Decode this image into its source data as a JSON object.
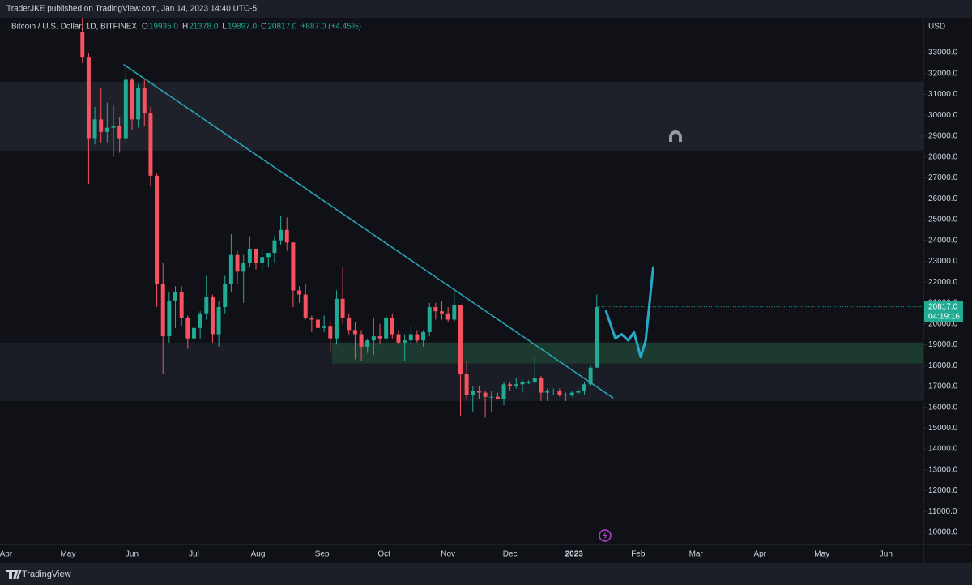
{
  "header": {
    "publisher": "TraderJKE published on TradingView.com, Jan 14, 2023 14:40 UTC-5",
    "footer": "TradingView"
  },
  "chart_data": {
    "type": "candlestick",
    "title": "Bitcoin / U.S. Dollar, 1D, BITFINEX",
    "ohlc_legend": [
      {
        "key": "O",
        "value": "19935.0"
      },
      {
        "key": "H",
        "value": "21378.0"
      },
      {
        "key": "L",
        "value": "19897.0"
      },
      {
        "key": "C",
        "value": "20817.0"
      }
    ],
    "change": "+887.0 (+4.45%)",
    "y_unit": "USD",
    "up_color": "#22ab94",
    "down_color": "#f7525f",
    "open": [
      34000,
      32800,
      28900,
      29800,
      29200,
      29400,
      29500,
      28900,
      31700,
      29800,
      31300,
      30100,
      27100,
      21900,
      19400,
      21100,
      21500,
      20300,
      19300,
      19800,
      20500,
      21300,
      19500,
      20800,
      21900,
      23300,
      22500,
      22900,
      23600,
      22900,
      23200,
      23400,
      24000,
      24500,
      23900,
      21600,
      21400,
      20300,
      20200,
      19800,
      19900,
      19300,
      21200,
      20300,
      19700,
      19500,
      18900,
      19200,
      19400,
      19300,
      20300,
      19500,
      19100,
      19200,
      19500,
      19200,
      19600,
      20800,
      20600,
      20500,
      20200,
      20900,
      17600,
      16600,
      16800,
      16700,
      16500,
      16500,
      16400,
      17100,
      17000,
      17100,
      17200,
      17200,
      17400,
      16700,
      16800,
      16800,
      16600,
      16600,
      16700,
      16800,
      17100,
      17900
    ],
    "high": [
      34700,
      33000,
      30400,
      31300,
      30600,
      30500,
      29900,
      32400,
      31800,
      31500,
      31700,
      30400,
      27200,
      22900,
      21500,
      21800,
      21800,
      20400,
      20200,
      20600,
      22300,
      21400,
      21100,
      22300,
      24300,
      23500,
      23300,
      24200,
      23600,
      23600,
      23400,
      24200,
      25200,
      25100,
      23900,
      21800,
      21900,
      20400,
      20600,
      20400,
      20100,
      21600,
      22700,
      20500,
      20100,
      19700,
      19300,
      20300,
      20000,
      20500,
      20500,
      19700,
      19500,
      19900,
      19700,
      19700,
      21000,
      21000,
      21100,
      20800,
      21500,
      20900,
      18200,
      17000,
      17000,
      16800,
      16800,
      16700,
      17200,
      17200,
      17400,
      17300,
      17300,
      18400,
      17500,
      16900,
      16900,
      16900,
      16700,
      16800,
      16900,
      17200,
      18000,
      21400
    ],
    "low": [
      32500,
      26700,
      28600,
      28700,
      28700,
      28000,
      28200,
      28700,
      29300,
      29400,
      29500,
      26600,
      20800,
      17600,
      19100,
      19800,
      19900,
      18800,
      18800,
      19300,
      20200,
      19100,
      18900,
      20500,
      21500,
      21900,
      21000,
      22700,
      22600,
      22500,
      22700,
      22900,
      23800,
      23500,
      20800,
      21000,
      20200,
      19600,
      19600,
      19600,
      18600,
      19000,
      20000,
      19500,
      18300,
      18200,
      18600,
      18500,
      19000,
      19100,
      19300,
      19000,
      18200,
      19000,
      19100,
      18900,
      19400,
      20200,
      20200,
      20100,
      20100,
      15600,
      16300,
      15800,
      16400,
      15500,
      15800,
      16400,
      16100,
      16800,
      16900,
      16700,
      17100,
      17100,
      16300,
      16300,
      16600,
      16500,
      16300,
      16500,
      16600,
      16600,
      17000,
      17900
    ],
    "close": [
      32800,
      28900,
      29800,
      29200,
      29400,
      29500,
      28900,
      31700,
      29800,
      31300,
      30100,
      27100,
      21900,
      19400,
      21100,
      21500,
      20300,
      19300,
      19800,
      20500,
      21300,
      19500,
      20800,
      21900,
      23300,
      22500,
      22900,
      23600,
      22900,
      23200,
      23400,
      24000,
      24500,
      23900,
      21600,
      21400,
      20300,
      20200,
      19800,
      19900,
      19300,
      21200,
      20300,
      19700,
      19500,
      18900,
      19200,
      19400,
      19300,
      20300,
      19500,
      19100,
      19200,
      19500,
      19200,
      19600,
      20800,
      20600,
      20500,
      20200,
      20900,
      17600,
      16600,
      16800,
      16700,
      16500,
      16500,
      16400,
      17100,
      17000,
      17100,
      17200,
      17200,
      17400,
      16700,
      16800,
      16800,
      16600,
      16600,
      16700,
      16800,
      17100,
      17900,
      20800
    ],
    "xlim": [
      -13.3,
      135.7
    ],
    "xticks": [
      {
        "value": -12.33,
        "label": "Apr"
      },
      {
        "value": -2.33,
        "label": "May"
      },
      {
        "value": 8,
        "label": "Jun"
      },
      {
        "value": 18,
        "label": "Jul"
      },
      {
        "value": 28.33,
        "label": "Aug"
      },
      {
        "value": 38.67,
        "label": "Sep"
      },
      {
        "value": 48.67,
        "label": "Oct"
      },
      {
        "value": 59,
        "label": "Nov"
      },
      {
        "value": 69,
        "label": "Dec"
      },
      {
        "value": 79.33,
        "label": "2023"
      },
      {
        "value": 89.67,
        "label": "Feb"
      },
      {
        "value": 99,
        "label": "Mar"
      },
      {
        "value": 109.33,
        "label": "Apr"
      },
      {
        "value": 119.33,
        "label": "May"
      },
      {
        "value": 129.67,
        "label": "Jun"
      }
    ],
    "ylim": [
      9420,
      34670
    ],
    "yticks": [
      {
        "value": 10000,
        "label": "10000.0"
      },
      {
        "value": 11000,
        "label": "11000.0"
      },
      {
        "value": 12000,
        "label": "12000.0"
      },
      {
        "value": 13000,
        "label": "13000.0"
      },
      {
        "value": 14000,
        "label": "14000.0"
      },
      {
        "value": 15000,
        "label": "15000.0"
      },
      {
        "value": 16000,
        "label": "16000.0"
      },
      {
        "value": 17000,
        "label": "17000.0"
      },
      {
        "value": 18000,
        "label": "18000.0"
      },
      {
        "value": 19000,
        "label": "19000.0"
      },
      {
        "value": 20000,
        "label": "20000.0"
      },
      {
        "value": 21000,
        "label": "21000.0"
      },
      {
        "value": 22000,
        "label": "22000.0"
      },
      {
        "value": 23000,
        "label": "23000.0"
      },
      {
        "value": 24000,
        "label": "24000.0"
      },
      {
        "value": 25000,
        "label": "25000.0"
      },
      {
        "value": 26000,
        "label": "26000.0"
      },
      {
        "value": 27000,
        "label": "27000.0"
      },
      {
        "value": 28000,
        "label": "28000.0"
      },
      {
        "value": 29000,
        "label": "29000.0"
      },
      {
        "value": 30000,
        "label": "30000.0"
      },
      {
        "value": 31000,
        "label": "31000.0"
      },
      {
        "value": 32000,
        "label": "32000.0"
      },
      {
        "value": 33000,
        "label": "33000.0"
      }
    ],
    "grid": false,
    "zones": [
      {
        "y": [
          28300,
          31600
        ],
        "color": "#1e2129"
      },
      {
        "y": [
          16300,
          19100
        ],
        "color": "#1a1d25"
      },
      {
        "y": [
          18100,
          19100
        ],
        "x": [
          40.3,
          135.7
        ],
        "color": "#1d3a31"
      }
    ],
    "trendline": {
      "x": [
        6.7,
        85.6
      ],
      "y": [
        32420,
        16450
      ],
      "color": "#2aa8b8"
    },
    "projection": {
      "x": [
        84.5,
        86.0,
        87.0,
        88.1,
        89.0,
        90.1,
        90.9,
        92.1
      ],
      "y": [
        20600,
        19300,
        19500,
        19200,
        19600,
        18400,
        19200,
        22700
      ],
      "color": "#2aa8c8"
    },
    "last_price": {
      "value": 20817,
      "label": "20817.0",
      "countdown": "04:19:16",
      "color": "#22ab94"
    }
  }
}
